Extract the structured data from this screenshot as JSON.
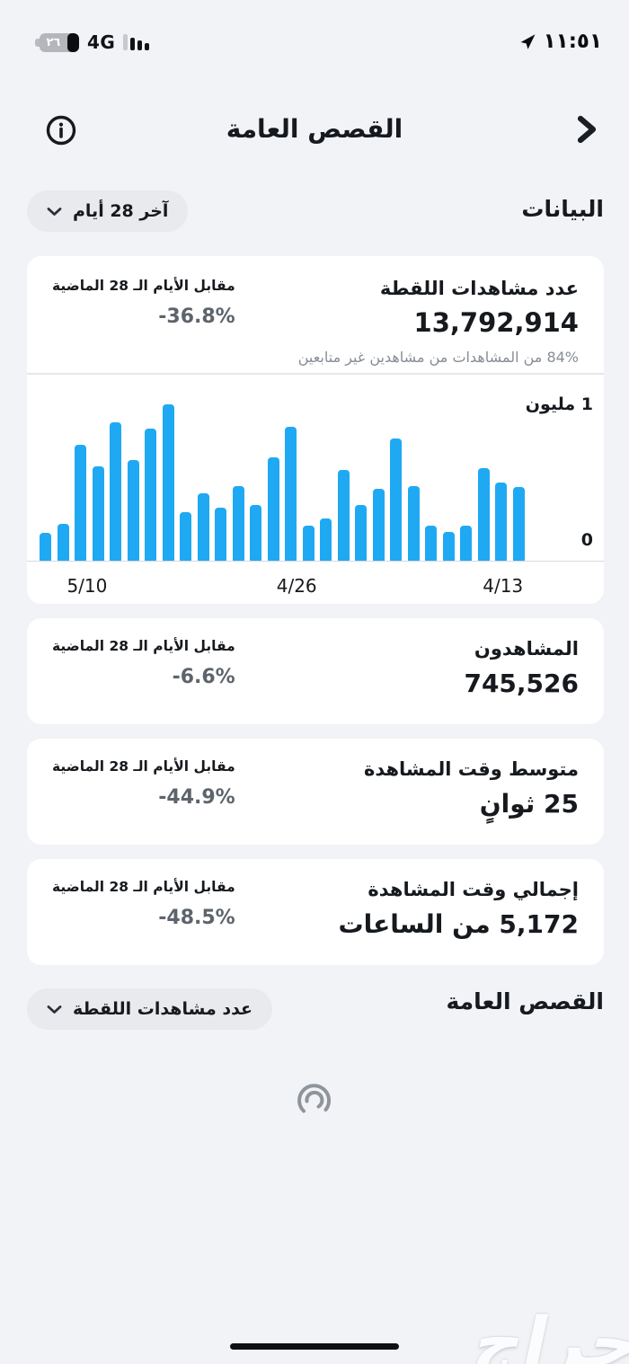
{
  "status_bar": {
    "battery_percent": "٢٦",
    "network": "4G",
    "time": "١١:٥١"
  },
  "header": {
    "title": "القصص العامة"
  },
  "data_section": {
    "heading": "البيانات",
    "range_selector": {
      "label": "آخر 28 أيام"
    },
    "views_card": {
      "title": "عدد مشاهدات اللقطة",
      "value": "13,792,914",
      "subtitle": "84% من المشاهدات من مشاهدين غير متابعين",
      "compare_label": "مقابل الأيام الـ 28 الماضية",
      "compare_value": "-36.8%"
    },
    "stat_cards": [
      {
        "title": "المشاهدون",
        "value": "745,526",
        "compare_label": "مقابل الأيام الـ 28 الماضية",
        "compare_value": "-6.6%"
      },
      {
        "title": "متوسط وقت المشاهدة",
        "value": "25 ثوانٍ",
        "compare_label": "مقابل الأيام الـ 28 الماضية",
        "compare_value": "-44.9%"
      },
      {
        "title": "إجمالي وقت المشاهدة",
        "value": "5,172 من الساعات",
        "compare_label": "مقابل الأيام الـ 28 الماضية",
        "compare_value": "-48.5%"
      }
    ]
  },
  "chart_data": {
    "type": "bar",
    "title": "",
    "ylabel_top": "1 مليون",
    "ylabel_bottom": "0",
    "ymax": 1000000,
    "bar_color": "#1fa9f3",
    "grid": false,
    "orientation": "rtl, newest day on the left",
    "x_ticks": [
      {
        "label": "5/10",
        "pos_percent": 9.8
      },
      {
        "label": "4/26",
        "pos_percent": 53
      },
      {
        "label": "4/13",
        "pos_percent": 95.5
      }
    ],
    "values": [
      180000,
      240000,
      740000,
      600000,
      880000,
      640000,
      840000,
      995000,
      310000,
      430000,
      340000,
      480000,
      360000,
      660000,
      850000,
      230000,
      270000,
      580000,
      360000,
      460000,
      780000,
      480000,
      230000,
      190000,
      230000,
      590000,
      500000,
      470000
    ]
  },
  "stories_section": {
    "heading": "القصص العامة",
    "metric_selector": {
      "label": "عدد مشاهدات اللقطة"
    }
  },
  "watermark": {
    "text": "حراج"
  },
  "colors": {
    "background": "#f2f3f6",
    "card": "#ffffff",
    "bar_blue": "#1fa9f3",
    "percent_gray": "#5d646c",
    "subtitle_gray": "#878d95",
    "pill_bg": "#e8eaee"
  }
}
